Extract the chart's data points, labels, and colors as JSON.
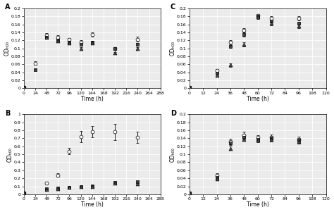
{
  "A": {
    "title": "A",
    "xlabel": "Time (h)",
    "ylabel": "ODₕ₀₀",
    "xlim": [
      0,
      288
    ],
    "ylim": [
      0,
      0.2
    ],
    "xticks": [
      0,
      24,
      48,
      72,
      96,
      120,
      144,
      168,
      192,
      216,
      240,
      264,
      288
    ],
    "yticks": [
      0,
      0.02,
      0.04,
      0.06,
      0.08,
      0.1,
      0.12,
      0.14,
      0.16,
      0.18,
      0.2
    ],
    "series": [
      {
        "x": [
          0,
          24,
          48,
          72,
          96,
          120,
          144,
          192,
          240
        ],
        "y": [
          0.002,
          0.063,
          0.133,
          0.128,
          0.122,
          0.116,
          0.135,
          0.1,
          0.123
        ],
        "yerr": [
          0.001,
          0.004,
          0.005,
          0.004,
          0.003,
          0.004,
          0.005,
          0.003,
          0.006
        ],
        "marker": "o",
        "mfc": "white",
        "mec": "black",
        "ms": 3.5
      },
      {
        "x": [
          0,
          24,
          48,
          72,
          96,
          120,
          144,
          192,
          240
        ],
        "y": [
          0.002,
          0.047,
          0.127,
          0.12,
          0.116,
          0.11,
          0.116,
          0.1,
          0.11
        ],
        "yerr": [
          0.001,
          0.002,
          0.003,
          0.003,
          0.002,
          0.002,
          0.003,
          0.002,
          0.003
        ],
        "marker": "s",
        "mfc": "#444444",
        "mec": "black",
        "ms": 3.5
      },
      {
        "x": [
          0,
          48,
          72,
          96,
          120,
          144,
          192,
          240
        ],
        "y": [
          0.002,
          0.128,
          0.118,
          0.113,
          0.1,
          0.113,
          0.088,
          0.1
        ],
        "yerr": [
          0.001,
          0.004,
          0.003,
          0.003,
          0.002,
          0.003,
          0.002,
          0.003
        ],
        "marker": "^",
        "mfc": "#555555",
        "mec": "black",
        "ms": 3.5
      }
    ]
  },
  "B": {
    "title": "B",
    "xlabel": "Time (h)",
    "ylabel": "ODₕ₀₀",
    "xlim": [
      0,
      288
    ],
    "ylim": [
      0,
      1.0
    ],
    "xticks": [
      0,
      24,
      48,
      72,
      96,
      120,
      144,
      168,
      192,
      216,
      240,
      264,
      288
    ],
    "yticks": [
      0,
      0.1,
      0.2,
      0.3,
      0.4,
      0.5,
      0.6,
      0.7,
      0.8,
      0.9,
      1.0
    ],
    "series": [
      {
        "x": [
          0,
          48,
          72,
          96,
          120,
          144,
          192,
          240
        ],
        "y": [
          0.015,
          0.14,
          0.24,
          0.54,
          0.72,
          0.78,
          0.78,
          0.71
        ],
        "yerr": [
          0.002,
          0.01,
          0.02,
          0.04,
          0.07,
          0.07,
          0.1,
          0.07
        ],
        "marker": "o",
        "mfc": "white",
        "mec": "black",
        "ms": 3.5
      },
      {
        "x": [
          0,
          48,
          72,
          96,
          120,
          144,
          192,
          240
        ],
        "y": [
          0.015,
          0.07,
          0.075,
          0.09,
          0.1,
          0.105,
          0.15,
          0.16
        ],
        "yerr": [
          0.002,
          0.006,
          0.006,
          0.007,
          0.007,
          0.007,
          0.01,
          0.01
        ],
        "marker": "s",
        "mfc": "#444444",
        "mec": "black",
        "ms": 3.5
      },
      {
        "x": [
          0,
          48,
          72,
          96,
          120,
          144,
          192,
          240
        ],
        "y": [
          0.015,
          0.065,
          0.07,
          0.085,
          0.095,
          0.1,
          0.14,
          0.135
        ],
        "yerr": [
          0.002,
          0.005,
          0.005,
          0.005,
          0.005,
          0.005,
          0.008,
          0.008
        ],
        "marker": "^",
        "mfc": "#555555",
        "mec": "black",
        "ms": 3.5
      }
    ]
  },
  "C": {
    "title": "C",
    "xlabel": "Time (h)",
    "ylabel": "ODₕ₀₀",
    "xlim": [
      0,
      120
    ],
    "ylim": [
      0,
      0.2
    ],
    "xticks": [
      0,
      12,
      24,
      36,
      48,
      60,
      72,
      84,
      96,
      108,
      120
    ],
    "yticks": [
      0,
      0.02,
      0.04,
      0.06,
      0.08,
      0.1,
      0.12,
      0.14,
      0.16,
      0.18,
      0.2
    ],
    "series": [
      {
        "x": [
          0,
          24,
          36,
          48,
          60,
          72,
          96
        ],
        "y": [
          0.002,
          0.045,
          0.115,
          0.145,
          0.182,
          0.175,
          0.175
        ],
        "yerr": [
          0.001,
          0.003,
          0.005,
          0.006,
          0.004,
          0.005,
          0.005
        ],
        "marker": "o",
        "mfc": "white",
        "mec": "black",
        "ms": 3.5
      },
      {
        "x": [
          0,
          24,
          36,
          48,
          60,
          72,
          96
        ],
        "y": [
          0.002,
          0.038,
          0.105,
          0.135,
          0.18,
          0.168,
          0.163
        ],
        "yerr": [
          0.001,
          0.003,
          0.004,
          0.005,
          0.003,
          0.004,
          0.004
        ],
        "marker": "s",
        "mfc": "#444444",
        "mec": "black",
        "ms": 3.5
      },
      {
        "x": [
          0,
          24,
          36,
          48,
          60,
          72,
          96
        ],
        "y": [
          0.002,
          0.033,
          0.058,
          0.11,
          0.178,
          0.162,
          0.155
        ],
        "yerr": [
          0.001,
          0.003,
          0.004,
          0.006,
          0.004,
          0.004,
          0.004
        ],
        "marker": "^",
        "mfc": "#555555",
        "mec": "black",
        "ms": 3.5
      }
    ]
  },
  "D": {
    "title": "D",
    "xlabel": "Time (h)",
    "ylabel": "ODₕ₀₀",
    "xlim": [
      0,
      120
    ],
    "ylim": [
      0,
      0.2
    ],
    "xticks": [
      0,
      12,
      24,
      36,
      48,
      60,
      72,
      84,
      96,
      108,
      120
    ],
    "yticks": [
      0,
      0.02,
      0.04,
      0.06,
      0.08,
      0.1,
      0.12,
      0.14,
      0.16,
      0.18,
      0.2
    ],
    "series": [
      {
        "x": [
          0,
          24,
          36,
          48,
          60,
          72,
          96
        ],
        "y": [
          0.003,
          0.048,
          0.132,
          0.148,
          0.142,
          0.143,
          0.138
        ],
        "yerr": [
          0.001,
          0.004,
          0.007,
          0.008,
          0.006,
          0.006,
          0.006
        ],
        "marker": "o",
        "mfc": "white",
        "mec": "black",
        "ms": 3.5
      },
      {
        "x": [
          0,
          24,
          36,
          48,
          60,
          72,
          96
        ],
        "y": [
          0.003,
          0.042,
          0.128,
          0.142,
          0.138,
          0.14,
          0.135
        ],
        "yerr": [
          0.001,
          0.003,
          0.005,
          0.005,
          0.005,
          0.005,
          0.005
        ],
        "marker": "s",
        "mfc": "#444444",
        "mec": "black",
        "ms": 3.5
      },
      {
        "x": [
          0,
          24,
          36,
          48,
          60,
          72,
          96
        ],
        "y": [
          0.003,
          0.038,
          0.115,
          0.138,
          0.135,
          0.137,
          0.132
        ],
        "yerr": [
          0.001,
          0.003,
          0.005,
          0.005,
          0.005,
          0.005,
          0.005
        ],
        "marker": "^",
        "mfc": "#555555",
        "mec": "black",
        "ms": 3.5
      }
    ]
  }
}
